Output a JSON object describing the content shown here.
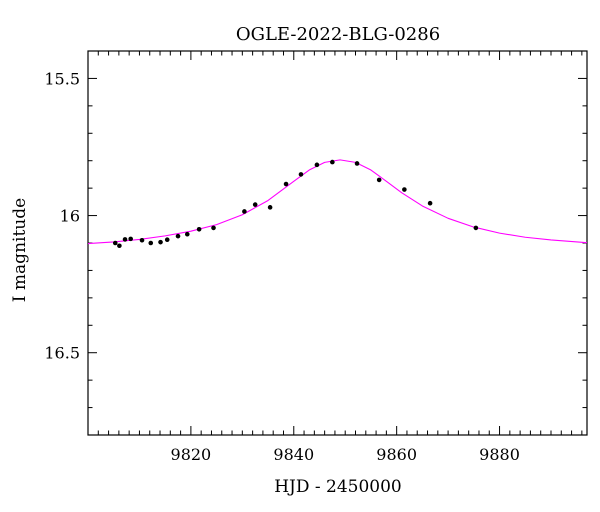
{
  "chart_data": {
    "type": "scatter",
    "title": "OGLE-2022-BLG-0286",
    "xlabel": "HJD - 2450000",
    "ylabel": "I magnitude",
    "xlim": [
      9800,
      9897
    ],
    "ylim": [
      16.8,
      15.4
    ],
    "y_inverted": true,
    "grid": false,
    "x_ticks": [
      9820,
      9840,
      9860,
      9880
    ],
    "y_ticks": [
      15.5,
      16,
      16.5
    ],
    "y_tick_labels": [
      "15.5",
      "16",
      "16.5"
    ],
    "series": [
      {
        "kind": "points",
        "color": "#000000",
        "x": [
          9805.3,
          9806.1,
          9807.2,
          9808.3,
          9810.5,
          9812.2,
          9814.1,
          9815.4,
          9817.5,
          9819.3,
          9821.6,
          9824.4,
          9830.4,
          9832.5,
          9835.4,
          9838.5,
          9841.4,
          9844.5,
          9847.5,
          9852.3,
          9856.6,
          9861.5,
          9866.5,
          9875.4
        ],
        "y": [
          16.1,
          16.11,
          16.087,
          16.085,
          16.09,
          16.1,
          16.097,
          16.088,
          16.075,
          16.068,
          16.05,
          16.045,
          15.985,
          15.96,
          15.97,
          15.885,
          15.85,
          15.815,
          15.805,
          15.81,
          15.87,
          15.905,
          15.955,
          16.045
        ],
        "errors": [
          0.006,
          0.006,
          0.006,
          0.006,
          0.006,
          0.006,
          0.006,
          0.006,
          0.006,
          0.006,
          0.006,
          0.006,
          0.007,
          0.007,
          0.007,
          0.007,
          0.007,
          0.007,
          0.007,
          0.007,
          0.007,
          0.007,
          0.007,
          0.006
        ]
      },
      {
        "kind": "model-curve",
        "color": "#ff00ff",
        "x": [
          9800,
          9805,
          9810,
          9815,
          9820,
          9825,
          9830,
          9835,
          9840,
          9843,
          9846,
          9849,
          9852,
          9855,
          9858,
          9861,
          9865,
          9870,
          9875,
          9880,
          9885,
          9890,
          9897
        ],
        "y": [
          16.102,
          16.096,
          16.087,
          16.074,
          16.057,
          16.033,
          15.997,
          15.945,
          15.875,
          15.834,
          15.806,
          15.797,
          15.806,
          15.834,
          15.875,
          15.917,
          15.965,
          16.01,
          16.042,
          16.064,
          16.079,
          16.089,
          16.099
        ]
      }
    ]
  }
}
